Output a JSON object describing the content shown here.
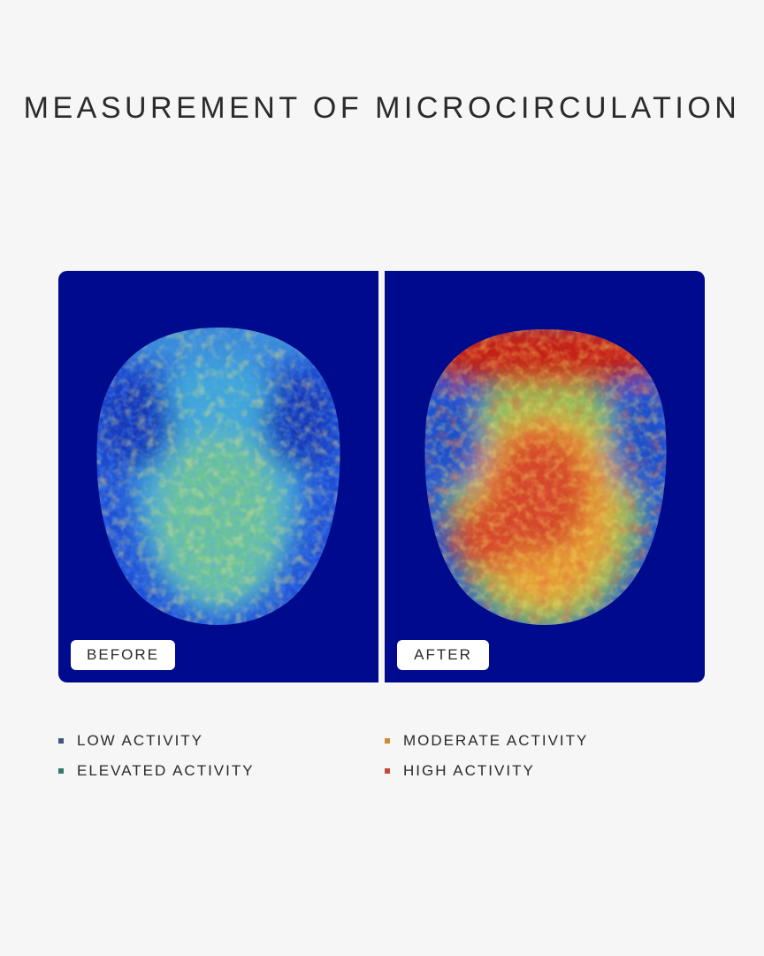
{
  "title": "MEASUREMENT OF MICROCIRCULATION",
  "panels": {
    "before_label": "BEFORE",
    "after_label": "AFTER",
    "background_color": "#000a8c"
  },
  "legend": [
    {
      "label": "LOW ACTIVITY",
      "color": "#3c5a7c"
    },
    {
      "label": "MODERATE ACTIVITY",
      "color": "#d08a35"
    },
    {
      "label": "ELEVATED ACTIVITY",
      "color": "#2f7c6a"
    },
    {
      "label": "HIGH ACTIVITY",
      "color": "#c64a3c"
    }
  ]
}
